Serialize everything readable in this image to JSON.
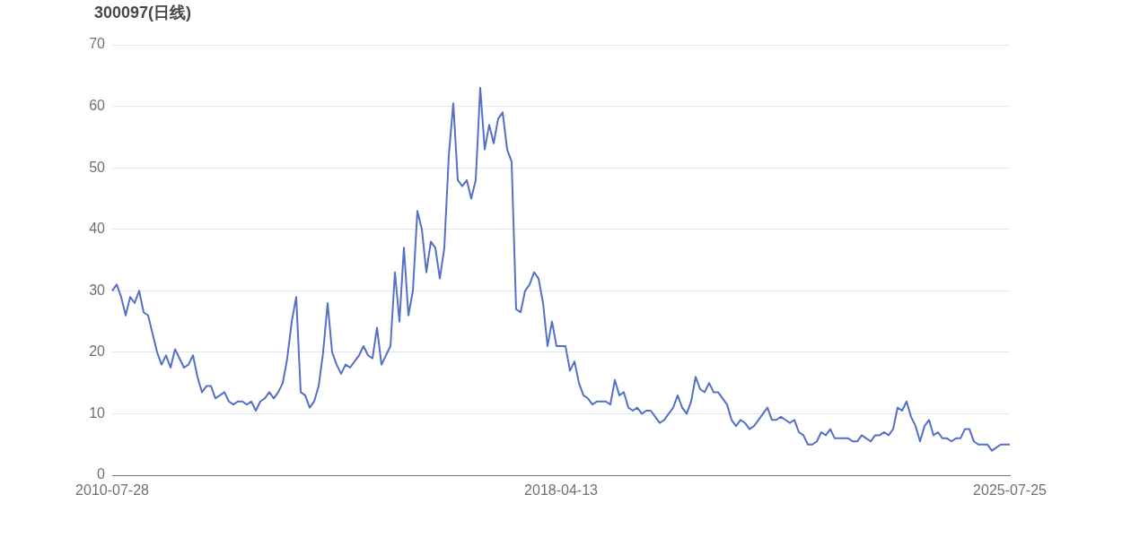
{
  "chart_data": {
    "type": "line",
    "title": "300097(日线)",
    "categories": [
      "2010-07-28",
      null,
      null,
      null,
      null,
      null,
      null,
      null,
      null,
      null,
      null,
      null,
      null,
      null,
      null,
      null,
      null,
      null,
      null,
      null,
      null,
      null,
      null,
      null,
      null,
      null,
      null,
      null,
      null,
      null,
      null,
      null,
      null,
      null,
      null,
      null,
      null,
      null,
      null,
      null,
      null,
      null,
      null,
      null,
      null,
      null,
      null,
      null,
      null,
      null,
      null,
      null,
      null,
      null,
      null,
      null,
      null,
      null,
      null,
      null,
      null,
      null,
      null,
      null,
      null,
      null,
      null,
      null,
      null,
      null,
      null,
      null,
      null,
      null,
      null,
      null,
      null,
      null,
      null,
      null,
      null,
      null,
      null,
      null,
      null,
      null,
      null,
      null,
      null,
      null,
      null,
      null,
      null,
      null,
      null,
      null,
      null,
      null,
      null,
      null,
      "2018-04-13",
      null,
      null,
      null,
      null,
      null,
      null,
      null,
      null,
      null,
      null,
      null,
      null,
      null,
      null,
      null,
      null,
      null,
      null,
      null,
      null,
      null,
      null,
      null,
      null,
      null,
      null,
      null,
      null,
      null,
      null,
      null,
      null,
      null,
      null,
      null,
      null,
      null,
      null,
      null,
      null,
      null,
      null,
      null,
      null,
      null,
      null,
      null,
      null,
      null,
      null,
      null,
      null,
      null,
      null,
      null,
      null,
      null,
      null,
      null,
      null,
      null,
      null,
      null,
      null,
      null,
      null,
      null,
      null,
      null,
      null,
      null,
      null,
      null,
      null,
      null,
      null,
      null,
      null,
      null,
      null,
      null,
      null,
      null,
      null,
      null,
      null,
      null,
      null,
      null,
      null,
      null,
      null,
      null,
      null,
      null,
      null,
      null,
      null,
      null,
      "2025-07-25"
    ],
    "series": [
      {
        "color": "#5470c6",
        "values": [
          30,
          31,
          29,
          26,
          29,
          28,
          30,
          26.5,
          26,
          23,
          20,
          18,
          19.5,
          17.5,
          20.5,
          19,
          17.5,
          18,
          19.5,
          16,
          13.5,
          14.5,
          14.5,
          12.5,
          13,
          13.5,
          12,
          11.5,
          12,
          12,
          11.5,
          12,
          10.5,
          12,
          12.5,
          13.5,
          12.5,
          13.5,
          15,
          19,
          25,
          29,
          13.5,
          13,
          11,
          12,
          14.5,
          20,
          28,
          20,
          18,
          16.5,
          18,
          17.5,
          18.5,
          19.5,
          21,
          19.5,
          19,
          24,
          18,
          19.5,
          21,
          33,
          25,
          37,
          26,
          30,
          43,
          40,
          33,
          38,
          37,
          32,
          37,
          52,
          60.5,
          48,
          47,
          48,
          45,
          48,
          63,
          53,
          57,
          54,
          58,
          59,
          53,
          51,
          27,
          26.5,
          30,
          31,
          33,
          32,
          28,
          21,
          25,
          21,
          21,
          21,
          17,
          18.5,
          15,
          13,
          12.5,
          11.5,
          12,
          12,
          12,
          11.5,
          15.5,
          13,
          13.5,
          11,
          10.5,
          11,
          10,
          10.5,
          10.5,
          9.5,
          8.5,
          9,
          10,
          11,
          13,
          11,
          10,
          12,
          16,
          14,
          13.5,
          15,
          13.5,
          13.5,
          12.5,
          11.5,
          9,
          8,
          9,
          8.5,
          7.5,
          8,
          9,
          10,
          11,
          9,
          9,
          9.5,
          9,
          8.5,
          9,
          7,
          6.5,
          5,
          5,
          5.5,
          7,
          6.5,
          7.5,
          6,
          6,
          6,
          6,
          5.5,
          5.5,
          6.5,
          6,
          5.5,
          6.5,
          6.5,
          7,
          6.5,
          7.5,
          11,
          10.5,
          12,
          9.5,
          8,
          5.5,
          8,
          9,
          6.5,
          7,
          6,
          6,
          5.5,
          6,
          6,
          7.5,
          7.5,
          5.5,
          5,
          5,
          5,
          4,
          4.5,
          5,
          5,
          5
        ]
      }
    ],
    "ylim": [
      0,
      70
    ],
    "yticks": [
      0,
      10,
      20,
      30,
      40,
      50,
      60,
      70
    ],
    "grid": "y",
    "legend": false
  }
}
